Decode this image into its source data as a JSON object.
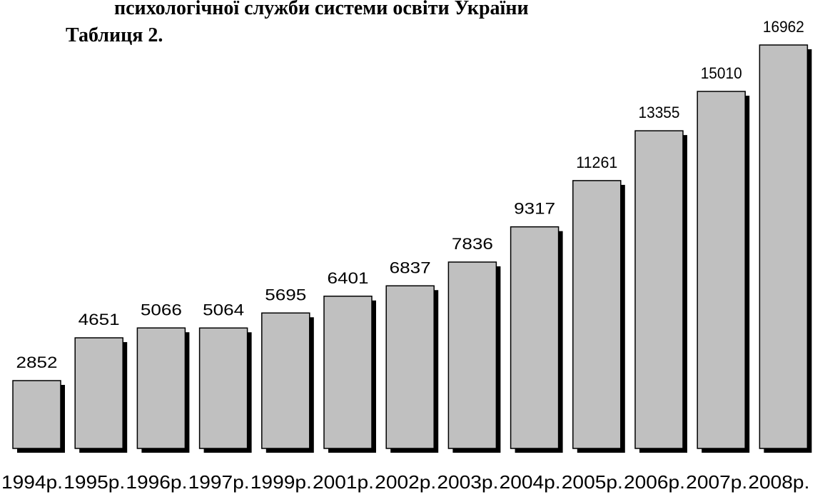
{
  "chart_data": {
    "type": "bar",
    "title": "психологічної служби системи освіти України",
    "subtitle": "Таблиця 2.",
    "categories": [
      "1994р.",
      "1995р.",
      "1996р.",
      "1997р.",
      "1999р.",
      "2001р.",
      "2002р.",
      "2003р.",
      "2004р.",
      "2005р.",
      "2006р.",
      "2007р.",
      "2008р."
    ],
    "values": [
      2852,
      4651,
      5066,
      5064,
      5695,
      6401,
      6837,
      7836,
      9317,
      11261,
      13355,
      15010,
      16962
    ],
    "color": "#c0c0c0"
  }
}
